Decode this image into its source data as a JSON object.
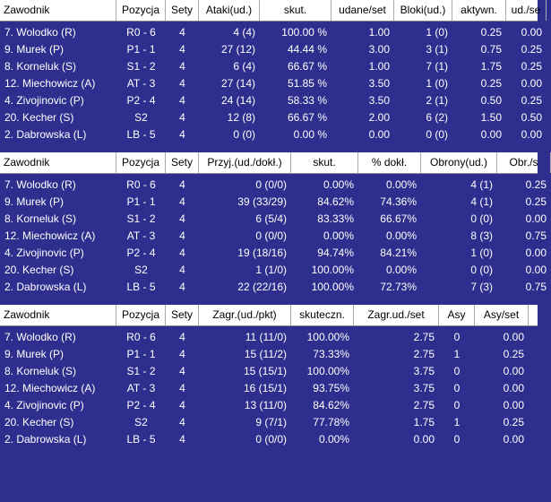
{
  "tables": [
    {
      "columns": [
        "Zawodnik",
        "Pozycja",
        "Sety",
        "Ataki(ud.)",
        "skut.",
        "udane/set",
        "Bloki(ud.)",
        "aktywn.",
        "ud./se"
      ],
      "rows": [
        [
          "7. Wolodko (R)",
          "R0 - 6",
          "4",
          "4 (4)",
          "100.00 %",
          "1.00",
          "1 (0)",
          "0.25",
          "0.00"
        ],
        [
          "9. Murek (P)",
          "P1 - 1",
          "4",
          "27 (12)",
          "44.44 %",
          "3.00",
          "3 (1)",
          "0.75",
          "0.25"
        ],
        [
          "8. Korneluk (S)",
          "S1 - 2",
          "4",
          "6 (4)",
          "66.67 %",
          "1.00",
          "7 (1)",
          "1.75",
          "0.25"
        ],
        [
          "12. Miechowicz (A)",
          "AT - 3",
          "4",
          "27 (14)",
          "51.85 %",
          "3.50",
          "1 (0)",
          "0.25",
          "0.00"
        ],
        [
          "4. Zivojinovic (P)",
          "P2 - 4",
          "4",
          "24 (14)",
          "58.33 %",
          "3.50",
          "2 (1)",
          "0.50",
          "0.25"
        ],
        [
          "20. Kecher (S)",
          "S2",
          "4",
          "12 (8)",
          "66.67 %",
          "2.00",
          "6 (2)",
          "1.50",
          "0.50"
        ],
        [
          "2. Dabrowska (L)",
          "LB - 5",
          "4",
          "0 (0)",
          "0.00 %",
          "0.00",
          "0 (0)",
          "0.00",
          "0.00"
        ]
      ]
    },
    {
      "columns": [
        "Zawodnik",
        "Pozycja",
        "Sety",
        "Przyj.(ud./dokł.)",
        "skut.",
        "% dokł.",
        "Obrony(ud.)",
        "Obr./s"
      ],
      "rows": [
        [
          "7. Wolodko (R)",
          "R0 - 6",
          "4",
          "0 (0/0)",
          "0.00%",
          "0.00%",
          "4 (1)",
          "0.25"
        ],
        [
          "9. Murek (P)",
          "P1 - 1",
          "4",
          "39 (33/29)",
          "84.62%",
          "74.36%",
          "4 (1)",
          "0.25"
        ],
        [
          "8. Korneluk (S)",
          "S1 - 2",
          "4",
          "6 (5/4)",
          "83.33%",
          "66.67%",
          "0 (0)",
          "0.00"
        ],
        [
          "12. Miechowicz (A)",
          "AT - 3",
          "4",
          "0 (0/0)",
          "0.00%",
          "0.00%",
          "8 (3)",
          "0.75"
        ],
        [
          "4. Zivojinovic (P)",
          "P2 - 4",
          "4",
          "19 (18/16)",
          "94.74%",
          "84.21%",
          "1 (0)",
          "0.00"
        ],
        [
          "20. Kecher (S)",
          "S2",
          "4",
          "1 (1/0)",
          "100.00%",
          "0.00%",
          "0 (0)",
          "0.00"
        ],
        [
          "2. Dabrowska (L)",
          "LB - 5",
          "4",
          "22 (22/16)",
          "100.00%",
          "72.73%",
          "7 (3)",
          "0.75"
        ]
      ]
    },
    {
      "columns": [
        "Zawodnik",
        "Pozycja",
        "Sety",
        "Zagr.(ud./pkt)",
        "skuteczn.",
        "Zagr.ud./set",
        "Asy",
        "Asy/set"
      ],
      "rows": [
        [
          "7. Wolodko (R)",
          "R0 - 6",
          "4",
          "11 (11/0)",
          "100.00%",
          "2.75",
          "0",
          "0.00"
        ],
        [
          "9. Murek (P)",
          "P1 - 1",
          "4",
          "15 (11/2)",
          "73.33%",
          "2.75",
          "1",
          "0.25"
        ],
        [
          "8. Korneluk (S)",
          "S1 - 2",
          "4",
          "15 (15/1)",
          "100.00%",
          "3.75",
          "0",
          "0.00"
        ],
        [
          "12. Miechowicz (A)",
          "AT - 3",
          "4",
          "16 (15/1)",
          "93.75%",
          "3.75",
          "0",
          "0.00"
        ],
        [
          "4. Zivojinovic (P)",
          "P2 - 4",
          "4",
          "13 (11/0)",
          "84.62%",
          "2.75",
          "0",
          "0.00"
        ],
        [
          "20. Kecher (S)",
          "S2",
          "4",
          "9 (7/1)",
          "77.78%",
          "1.75",
          "1",
          "0.25"
        ],
        [
          "2. Dabrowska (L)",
          "LB - 5",
          "4",
          "0 (0/0)",
          "0.00%",
          "0.00",
          "0",
          "0.00"
        ]
      ]
    }
  ]
}
